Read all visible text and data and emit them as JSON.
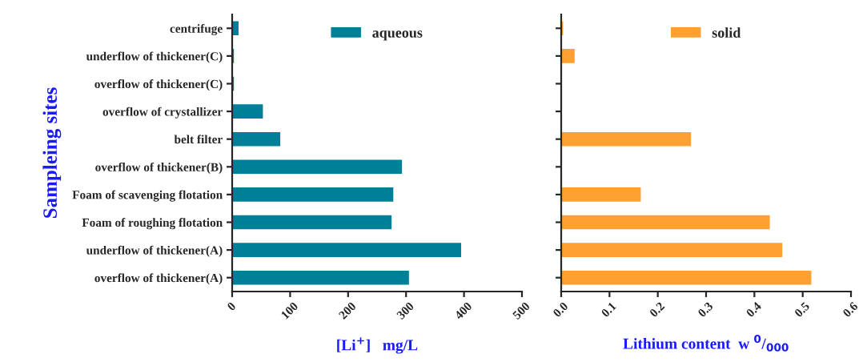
{
  "chart_data": [
    {
      "type": "bar",
      "orientation": "horizontal",
      "categories": [
        "centrifuge",
        "underflow of thickener(C)",
        "overflow of thickener(C)",
        "overflow of crystallizer",
        "belt filter",
        "overflow of thickener(B)",
        "Foam of scavenging flotation",
        "Foam of roughing flotation",
        "underflow of thickener(A)",
        "overflow of thickener(A)"
      ],
      "series": [
        {
          "name": "aqueous",
          "color": "#007f99",
          "values": [
            12,
            4,
            4,
            54,
            84,
            294,
            279,
            276,
            396,
            306
          ]
        }
      ],
      "xlim": [
        0,
        500
      ],
      "xticks": [
        0,
        100,
        200,
        300,
        400,
        500
      ],
      "xlabel": "[Li$^{+}$]   mg/L",
      "ylabel": "Sampleing sites",
      "legend": "top",
      "grid": false
    },
    {
      "type": "bar",
      "orientation": "horizontal",
      "categories": [
        null,
        null,
        null,
        null,
        null,
        null,
        null,
        null,
        null,
        null
      ],
      "series": [
        {
          "name": "solid",
          "color": "#ffa033",
          "values": [
            0.005,
            0.029,
            null,
            null,
            0.27,
            null,
            0.166,
            0.433,
            0.459,
            0.519
          ]
        }
      ],
      "xlim": [
        0,
        0.6
      ],
      "xticks": [
        {
          "value": 0,
          "label": "0.0"
        },
        0.1,
        0.2,
        0.3,
        0.4,
        0.5,
        0.6
      ],
      "xlabel": "Lithium content  w $^{0}$/$_{000}$",
      "tick_labels": "x",
      "legend": "top",
      "grid": false
    }
  ]
}
